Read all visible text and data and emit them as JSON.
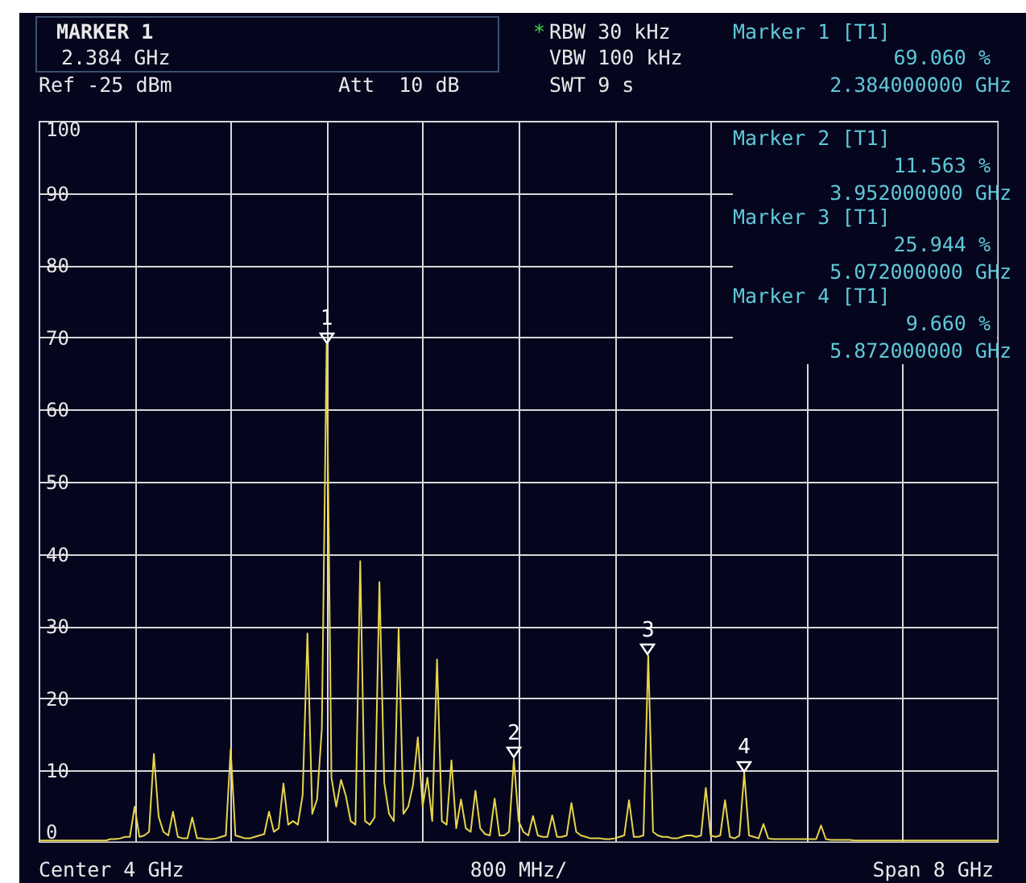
{
  "chart_data": {
    "type": "line",
    "categories": [
      null,
      null,
      null,
      null,
      null,
      null,
      null,
      null,
      null,
      null,
      null,
      null,
      null,
      null,
      null,
      null,
      null,
      null,
      null,
      null,
      null,
      null,
      null,
      null,
      null,
      null,
      null,
      null,
      null,
      null,
      null,
      null,
      null,
      null,
      null,
      null,
      null,
      null,
      null,
      null,
      null,
      null,
      null,
      null,
      null,
      null,
      null,
      null,
      null,
      null,
      null,
      null,
      null,
      null,
      null,
      null,
      null,
      null,
      null,
      null,
      null,
      null,
      null,
      null,
      null,
      null,
      null,
      null,
      null,
      null,
      null,
      null,
      null,
      null,
      null,
      null,
      null,
      null,
      null,
      null,
      null,
      null,
      null,
      null,
      null,
      null,
      null,
      null,
      null,
      null,
      null,
      null,
      null,
      null,
      null,
      null,
      null,
      null,
      null,
      null,
      null,
      null,
      null,
      null,
      null,
      null,
      null,
      null,
      null,
      null,
      null,
      null,
      null,
      null,
      null,
      null,
      null,
      null,
      null,
      null,
      null,
      null,
      null,
      null,
      null,
      null,
      null,
      null,
      null,
      null,
      null,
      null,
      null,
      null,
      null,
      null,
      null,
      null,
      null,
      null,
      null,
      null,
      null,
      null,
      null,
      null,
      null,
      null,
      null,
      null,
      null,
      null,
      null,
      null,
      null,
      null,
      null,
      null,
      null,
      null,
      null,
      null,
      null,
      null,
      null,
      null,
      null,
      null,
      null,
      null,
      null,
      null,
      null,
      null,
      null,
      null,
      null,
      null,
      null,
      null,
      null,
      null,
      null,
      null,
      null,
      null,
      null,
      null,
      null,
      null,
      null,
      null,
      null,
      null,
      null,
      null,
      null,
      null,
      null,
      null,
      null
    ],
    "series": [
      {
        "color": "#e8d44a",
        "values": [
          0.3,
          0.3,
          0.3,
          0.3,
          0.3,
          0.3,
          0.3,
          0.3,
          0.3,
          0.3,
          0.3,
          0.3,
          0.3,
          0.3,
          0.3,
          0.5,
          0.5,
          0.6,
          0.8,
          0.8,
          5.0,
          0.8,
          1.0,
          1.5,
          12.3,
          3.6,
          1.5,
          1.0,
          4.3,
          0.8,
          0.6,
          0.6,
          3.5,
          0.6,
          0.6,
          0.5,
          0.5,
          0.6,
          0.8,
          1.0,
          13.0,
          1.0,
          0.8,
          0.6,
          0.6,
          0.8,
          1.0,
          1.2,
          4.3,
          1.5,
          2.0,
          8.2,
          2.5,
          3.0,
          2.5,
          6.6,
          29.0,
          4.0,
          6.0,
          15.8,
          69.06,
          9.0,
          5.0,
          8.7,
          6.5,
          3.0,
          2.5,
          39.0,
          3.0,
          2.5,
          3.5,
          36.1,
          8.3,
          4.0,
          3.0,
          29.6,
          4.0,
          5.0,
          8.0,
          14.6,
          5.0,
          9.0,
          3.0,
          25.4,
          3.0,
          2.5,
          11.4,
          2.0,
          6.0,
          2.0,
          1.5,
          7.2,
          2.0,
          1.2,
          1.0,
          6.1,
          1.0,
          1.0,
          1.5,
          11.563,
          3.0,
          1.5,
          1.0,
          3.7,
          1.0,
          0.8,
          0.8,
          3.8,
          0.8,
          0.8,
          1.0,
          5.5,
          1.5,
          1.0,
          0.8,
          0.6,
          0.6,
          0.6,
          0.5,
          0.5,
          0.6,
          0.8,
          1.0,
          5.9,
          0.8,
          0.8,
          1.0,
          25.944,
          1.5,
          1.0,
          0.8,
          0.8,
          0.6,
          0.6,
          0.8,
          1.0,
          1.0,
          0.8,
          1.0,
          7.6,
          1.0,
          0.8,
          1.0,
          5.9,
          0.8,
          0.6,
          1.0,
          9.66,
          1.0,
          0.8,
          0.6,
          2.6,
          0.6,
          0.5,
          0.5,
          0.5,
          0.5,
          0.5,
          0.5,
          0.5,
          0.5,
          0.5,
          0.5,
          2.4,
          0.5,
          0.4,
          0.4,
          0.4,
          0.4,
          0.4,
          0.3,
          0.3,
          0.3,
          0.3,
          0.3,
          0.3,
          0.3,
          0.3,
          0.3,
          0.3,
          0.3,
          0.3,
          0.3,
          0.3,
          0.3,
          0.3,
          0.3,
          0.3,
          0.3,
          0.3,
          0.3,
          0.3,
          0.3,
          0.3,
          0.3,
          0.3,
          0.3,
          0.3,
          0.3,
          0.3,
          0.3
        ]
      }
    ],
    "ylim": [
      0,
      100
    ],
    "yticks": [
      0,
      10,
      20,
      30,
      40,
      50,
      60,
      70,
      80,
      90,
      100
    ],
    "grid": true,
    "tick_labels": "y",
    "annotations": [
      "MARKER 1",
      "2.384 GHz",
      "Ref -25 dBm",
      "Att  10 dB",
      "*",
      "RBW 30 kHz",
      "VBW 100 kHz",
      "SWT 9 s",
      "Marker 1 [T1]",
      "69.060 %",
      "2.384000000 GHz",
      "Marker 2 [T1]",
      "11.563 %",
      "3.952000000 GHz",
      "Marker 3 [T1]",
      "25.944 %",
      "5.072000000 GHz",
      "Marker 4 [T1]",
      "9.660 %",
      "5.872000000 GHz",
      "Center 4 GHz",
      "800 MHz/",
      "Span 8 GHz",
      {
        "text": "1",
        "y": 69.06
      },
      {
        "text": "2",
        "y": 11.563
      },
      {
        "text": "3",
        "y": 25.944
      },
      {
        "text": "4",
        "y": 9.66
      }
    ]
  }
}
